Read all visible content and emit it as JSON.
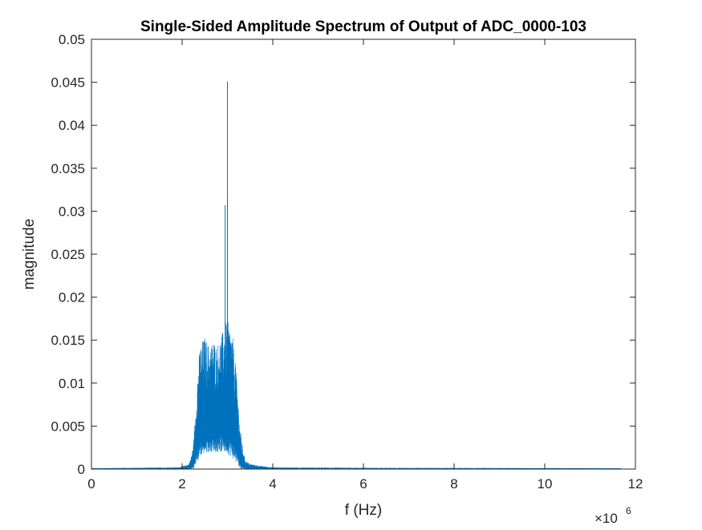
{
  "chart_data": {
    "type": "line",
    "title": "Single-Sided Amplitude Spectrum of Output of ADC_0000-103",
    "xlabel": "f (Hz)",
    "ylabel": "magnitude",
    "x_multiplier": "×10",
    "x_multiplier_exponent": "6",
    "xlim": [
      0,
      12000000
    ],
    "ylim": [
      0,
      0.05
    ],
    "xticks": [
      0,
      2000000,
      4000000,
      6000000,
      8000000,
      10000000,
      12000000
    ],
    "xtick_labels": [
      "0",
      "2",
      "4",
      "6",
      "8",
      "10",
      "12"
    ],
    "yticks": [
      0,
      0.005,
      0.01,
      0.015,
      0.02,
      0.025,
      0.03,
      0.035,
      0.04,
      0.045,
      0.05
    ],
    "ytick_labels": [
      "0",
      "0.005",
      "0.01",
      "0.015",
      "0.02",
      "0.025",
      "0.03",
      "0.035",
      "0.04",
      "0.045",
      "0.05"
    ],
    "grid": false,
    "line_color": "#0072BD",
    "x_data_end": 11680000,
    "series": [
      {
        "envelope": [
          [
            0,
            0.0001
          ],
          [
            1900000,
            0.0002
          ],
          [
            2000000,
            0.0003
          ],
          [
            2150000,
            0.0006
          ],
          [
            2200000,
            0.0015
          ],
          [
            2250000,
            0.003
          ],
          [
            2300000,
            0.007
          ],
          [
            2350000,
            0.012
          ],
          [
            2400000,
            0.0145
          ],
          [
            2450000,
            0.015
          ],
          [
            2500000,
            0.0155
          ],
          [
            2550000,
            0.0148
          ],
          [
            2600000,
            0.0145
          ],
          [
            2650000,
            0.0148
          ],
          [
            2700000,
            0.0152
          ],
          [
            2750000,
            0.0145
          ],
          [
            2800000,
            0.0148
          ],
          [
            2850000,
            0.0155
          ],
          [
            2900000,
            0.016
          ],
          [
            2930000,
            0.0165
          ],
          [
            2960000,
            0.017
          ],
          [
            3000000,
            0.0172
          ],
          [
            3050000,
            0.0168
          ],
          [
            3100000,
            0.016
          ],
          [
            3150000,
            0.014
          ],
          [
            3200000,
            0.0115
          ],
          [
            3250000,
            0.007
          ],
          [
            3300000,
            0.004
          ],
          [
            3350000,
            0.002
          ],
          [
            3400000,
            0.001
          ],
          [
            3500000,
            0.0006
          ],
          [
            3700000,
            0.0004
          ],
          [
            4000000,
            0.0002
          ],
          [
            6000000,
            0.00015
          ],
          [
            11680000,
            0.0001
          ]
        ],
        "floor": [
          [
            0,
            0
          ],
          [
            2250000,
            0
          ],
          [
            2300000,
            0.0005
          ],
          [
            2400000,
            0.0015
          ],
          [
            2600000,
            0.002
          ],
          [
            2800000,
            0.002
          ],
          [
            3000000,
            0.0018
          ],
          [
            3150000,
            0.001
          ],
          [
            3250000,
            0.0003
          ],
          [
            3300000,
            0
          ],
          [
            11680000,
            0
          ]
        ],
        "peaks": [
          {
            "x": 2950000,
            "y": 0.0307
          },
          {
            "x": 3000000,
            "y": 0.0451
          }
        ]
      }
    ]
  }
}
